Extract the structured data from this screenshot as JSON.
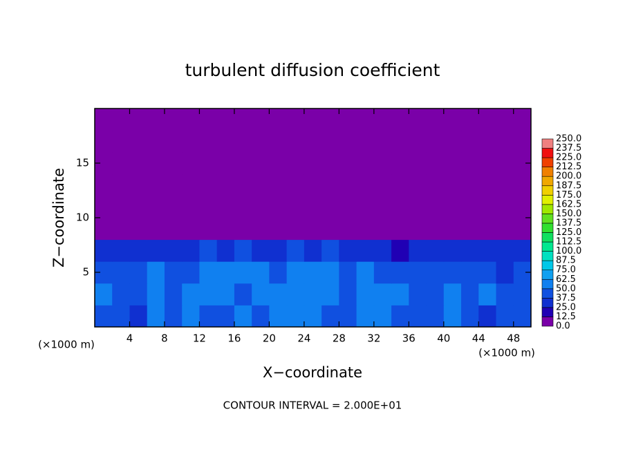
{
  "chart_data": {
    "type": "contour",
    "title": "turbulent diffusion coefficient",
    "x_label": "X−coordinate",
    "y_label": "Z−coordinate",
    "x_unit_label": "(×1000 m)",
    "y_unit_label": "(×1000 m)",
    "note": "CONTOUR INTERVAL = 2.000E+01",
    "xlim": [
      0,
      50
    ],
    "ylim": [
      0,
      20
    ],
    "xticks": [
      4,
      8,
      12,
      16,
      20,
      24,
      28,
      32,
      36,
      40,
      44,
      48
    ],
    "yticks": [
      5,
      10,
      15
    ],
    "field": {
      "x": [
        1,
        3,
        5,
        7,
        9,
        11,
        13,
        15,
        17,
        19,
        21,
        23,
        25,
        27,
        29,
        31,
        33,
        35,
        37,
        39,
        41,
        43,
        45,
        47,
        49
      ],
      "z": [
        1,
        3,
        5,
        7,
        9,
        11,
        13,
        15,
        17,
        19
      ],
      "values": [
        [
          45,
          40,
          35,
          50,
          40,
          55,
          45,
          40,
          50,
          45,
          55,
          60,
          50,
          45,
          40,
          55,
          50,
          45,
          40,
          45,
          50,
          40,
          35,
          45,
          40
        ],
        [
          50,
          45,
          40,
          55,
          45,
          50,
          60,
          50,
          45,
          55,
          50,
          60,
          55,
          50,
          45,
          60,
          55,
          50,
          45,
          40,
          55,
          45,
          50,
          40,
          45
        ],
        [
          45,
          40,
          45,
          50,
          40,
          45,
          55,
          50,
          55,
          50,
          45,
          55,
          50,
          60,
          45,
          50,
          45,
          40,
          45,
          40,
          45,
          40,
          45,
          35,
          40
        ],
        [
          35,
          30,
          25,
          30,
          25,
          30,
          40,
          35,
          40,
          35,
          30,
          40,
          35,
          40,
          35,
          30,
          30,
          20,
          25,
          30,
          35,
          30,
          35,
          30,
          25
        ],
        [
          0,
          0,
          0,
          0,
          0,
          0,
          0,
          0,
          0,
          0,
          0,
          0,
          0,
          0,
          0,
          0,
          0,
          0,
          0,
          0,
          0,
          0,
          0,
          0,
          0
        ],
        [
          0,
          0,
          0,
          0,
          0,
          0,
          0,
          0,
          0,
          0,
          0,
          0,
          0,
          0,
          0,
          0,
          0,
          0,
          0,
          0,
          0,
          0,
          0,
          0,
          0
        ],
        [
          0,
          0,
          0,
          0,
          0,
          0,
          0,
          0,
          0,
          0,
          0,
          0,
          0,
          0,
          0,
          0,
          0,
          0,
          0,
          0,
          0,
          0,
          0,
          0,
          0
        ],
        [
          0,
          0,
          0,
          0,
          0,
          0,
          0,
          0,
          0,
          0,
          0,
          0,
          0,
          0,
          0,
          0,
          0,
          0,
          0,
          0,
          0,
          0,
          0,
          0,
          0
        ],
        [
          0,
          0,
          0,
          0,
          0,
          0,
          0,
          0,
          0,
          0,
          0,
          0,
          0,
          0,
          0,
          0,
          0,
          0,
          0,
          0,
          0,
          0,
          0,
          0,
          0
        ],
        [
          0,
          0,
          0,
          0,
          0,
          0,
          0,
          0,
          0,
          0,
          0,
          0,
          0,
          0,
          0,
          0,
          0,
          0,
          0,
          0,
          0,
          0,
          0,
          0,
          0
        ]
      ]
    },
    "colorbar": {
      "levels": [
        {
          "value": 0,
          "label": "0.0"
        },
        {
          "value": 12.5,
          "label": "12.5"
        },
        {
          "value": 25,
          "label": "25.0"
        },
        {
          "value": 37.5,
          "label": "37.5"
        },
        {
          "value": 50,
          "label": "50.0"
        },
        {
          "value": 62.5,
          "label": "62.5"
        },
        {
          "value": 75,
          "label": "75.0"
        },
        {
          "value": 87.5,
          "label": "87.5"
        },
        {
          "value": 100,
          "label": "100.0"
        },
        {
          "value": 112.5,
          "label": "112.5"
        },
        {
          "value": 125,
          "label": "125.0"
        },
        {
          "value": 137.5,
          "label": "137.5"
        },
        {
          "value": 150,
          "label": "150.0"
        },
        {
          "value": 162.5,
          "label": "162.5"
        },
        {
          "value": 175,
          "label": "175.0"
        },
        {
          "value": 187.5,
          "label": "187.5"
        },
        {
          "value": 200,
          "label": "200.0"
        },
        {
          "value": 212.5,
          "label": "212.5"
        },
        {
          "value": 225,
          "label": "225.0"
        },
        {
          "value": 237.5,
          "label": "237.5"
        },
        {
          "value": 250,
          "label": "250.0"
        }
      ],
      "colors": [
        "#7a00a8",
        "#2000b4",
        "#1030d0",
        "#1050e0",
        "#1080f0",
        "#10a0f0",
        "#00c8e8",
        "#00e0c0",
        "#00e890",
        "#10e060",
        "#30e030",
        "#60e020",
        "#a0e800",
        "#e0f000",
        "#f0d000",
        "#f0a800",
        "#f08000",
        "#f04000",
        "#f01010",
        "#f08080"
      ]
    }
  }
}
